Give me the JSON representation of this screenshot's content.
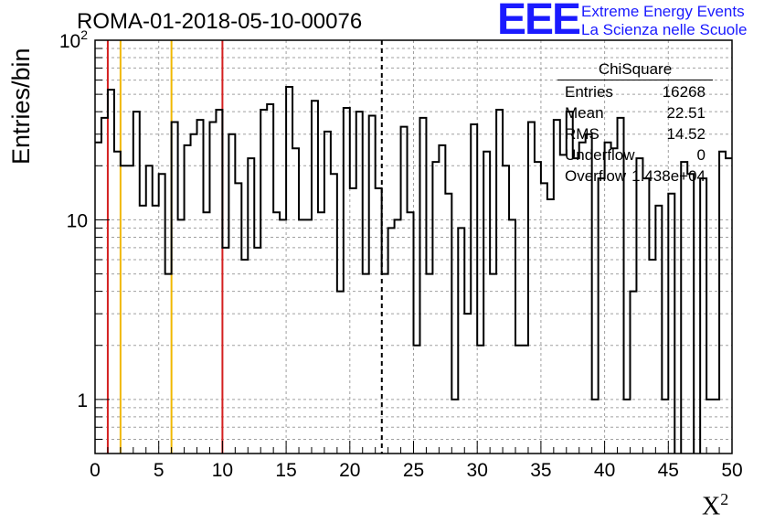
{
  "header": {
    "title": "ROMA-01-2018-05-10-00076",
    "brand_logo": "EEE",
    "brand_line1": "Extreme Energy Events",
    "brand_line2": "La Scienza nelle Scuole",
    "brand_color": "#1a1aff"
  },
  "stats_box": {
    "title": "ChiSquare",
    "rows": [
      {
        "label": "Entries",
        "value": "16268"
      },
      {
        "label": "Mean",
        "value": "22.51"
      },
      {
        "label": "RMS",
        "value": "14.52"
      },
      {
        "label": "Underflow",
        "value": "0"
      },
      {
        "label": "Overflow",
        "value": "1.438e+04"
      }
    ]
  },
  "chart_data": {
    "type": "histogram",
    "xlabel": "X²",
    "xlabel_base": "X",
    "xlabel_sup": "2",
    "ylabel": "Entries/bin",
    "xlim": [
      0,
      50
    ],
    "ylim": [
      0.5,
      100
    ],
    "y_scale": "log",
    "grid": true,
    "x_ticks": [
      "0",
      "5",
      "10",
      "15",
      "20",
      "25",
      "30",
      "35",
      "40",
      "45",
      "50"
    ],
    "y_tick_labels": [
      {
        "value": 1,
        "label": "1"
      },
      {
        "value": 10,
        "label": "10"
      },
      {
        "value": 100,
        "label": "10",
        "sup": "2"
      }
    ],
    "bin_width": 0.5,
    "bin_counts": [
      27,
      37,
      53,
      24,
      20,
      20,
      40,
      12,
      20,
      12,
      18,
      5,
      35,
      10,
      26,
      30,
      36,
      11,
      35,
      41,
      7,
      30,
      16,
      6,
      22,
      7,
      41,
      44,
      11,
      10,
      55,
      25,
      10,
      10,
      46,
      11,
      31,
      18,
      4,
      42,
      15,
      40,
      5,
      38,
      15,
      5,
      9,
      10,
      33,
      11,
      2,
      37,
      5,
      21,
      26,
      14,
      1,
      9,
      3,
      34,
      2,
      24,
      5,
      41,
      20,
      10,
      2,
      2,
      35,
      21,
      16,
      13,
      36,
      23,
      40,
      22,
      27,
      30,
      1,
      17,
      27,
      25,
      37,
      1,
      4,
      22,
      17,
      6,
      12,
      1,
      14,
      0,
      21,
      18,
      0,
      17,
      1,
      1,
      24,
      22
    ],
    "histogram_color": "#000000",
    "reference_lines": [
      {
        "x": 1,
        "color": "#d42020"
      },
      {
        "x": 2,
        "color": "#f0b800"
      },
      {
        "x": 6,
        "color": "#f0b800"
      },
      {
        "x": 10,
        "color": "#d42020"
      },
      {
        "x": 22.51,
        "color": "#000000",
        "dashed": true
      }
    ]
  }
}
